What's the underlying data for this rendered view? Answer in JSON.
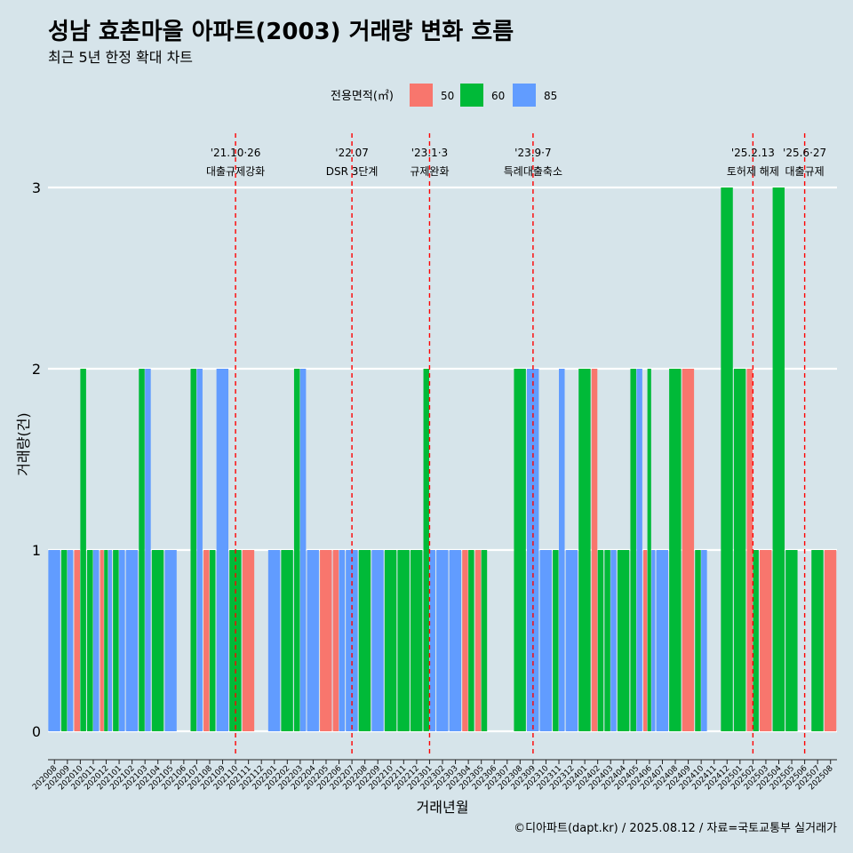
{
  "chart_data": {
    "type": "bar",
    "title": "성남 효촌마을 아파트(2003) 거래량 변화 흐름",
    "subtitle": "최근 5년 한정 확대 차트",
    "xlabel": "거래년월",
    "ylabel": "거래량(건)",
    "ylim": [
      0,
      3
    ],
    "yticks": [
      "0",
      "1",
      "2",
      "3"
    ],
    "legend": {
      "title": "전용면적(㎡)",
      "position": "top",
      "entries": [
        {
          "label": "50",
          "color": "#f8766d"
        },
        {
          "label": "60",
          "color": "#00ba38"
        },
        {
          "label": "85",
          "color": "#619cff"
        }
      ]
    },
    "categories": [
      "202008",
      "202009",
      "202010",
      "202011",
      "202012",
      "202101",
      "202102",
      "202103",
      "202104",
      "202105",
      "202106",
      "202107",
      "202108",
      "202109",
      "202110",
      "202111",
      "202112",
      "202201",
      "202202",
      "202203",
      "202204",
      "202205",
      "202206",
      "202207",
      "202208",
      "202209",
      "202210",
      "202211",
      "202212",
      "202301",
      "202302",
      "202303",
      "202304",
      "202305",
      "202306",
      "202307",
      "202308",
      "202309",
      "202310",
      "202311",
      "202312",
      "202401",
      "202402",
      "202403",
      "202404",
      "202405",
      "202406",
      "202407",
      "202408",
      "202409",
      "202410",
      "202411",
      "202412",
      "202501",
      "202502",
      "202503",
      "202504",
      "202505",
      "202506",
      "202507",
      "202508"
    ],
    "series": [
      {
        "name": "50",
        "color": "#f8766d",
        "values": [
          0,
          0,
          1,
          0,
          1,
          0,
          0,
          0,
          0,
          0,
          0,
          0,
          1,
          0,
          0,
          1,
          0,
          0,
          0,
          0,
          0,
          1,
          1,
          0,
          0,
          0,
          0,
          0,
          0,
          0,
          0,
          0,
          1,
          1,
          0,
          0,
          0,
          0,
          0,
          0,
          0,
          0,
          2,
          0,
          0,
          0,
          1,
          0,
          0,
          2,
          0,
          0,
          0,
          0,
          2,
          1,
          0,
          0,
          0,
          0,
          1
        ]
      },
      {
        "name": "60",
        "color": "#00ba38",
        "values": [
          0,
          1,
          2,
          1,
          1,
          1,
          0,
          2,
          1,
          0,
          0,
          2,
          1,
          0,
          1,
          0,
          0,
          0,
          1,
          2,
          0,
          0,
          0,
          0,
          1,
          0,
          1,
          1,
          1,
          2,
          0,
          0,
          1,
          1,
          0,
          0,
          2,
          0,
          0,
          1,
          0,
          2,
          1,
          1,
          1,
          2,
          2,
          0,
          2,
          0,
          1,
          0,
          3,
          2,
          1,
          0,
          3,
          1,
          0,
          1,
          0
        ]
      },
      {
        "name": "85",
        "color": "#619cff",
        "values": [
          1,
          1,
          0,
          1,
          1,
          1,
          1,
          2,
          0,
          1,
          0,
          2,
          0,
          2,
          0,
          0,
          0,
          1,
          0,
          2,
          1,
          0,
          1,
          1,
          0,
          1,
          0,
          0,
          0,
          1,
          1,
          1,
          0,
          0,
          0,
          0,
          0,
          2,
          1,
          2,
          1,
          0,
          0,
          1,
          0,
          2,
          1,
          1,
          0,
          0,
          1,
          0,
          0,
          0,
          0,
          0,
          0,
          0,
          0,
          0,
          0
        ]
      }
    ],
    "annotations": [
      {
        "x": "202110",
        "date": "'21.10·26",
        "label": "대출규제강화"
      },
      {
        "x": "202207",
        "date": "'22.07",
        "label": "DSR 3단계"
      },
      {
        "x": "202301",
        "date": "'23.1·3",
        "label": "규제완화"
      },
      {
        "x": "202309",
        "date": "'23.9·7",
        "label": "특례대출축소"
      },
      {
        "x": "202502",
        "date": "'25.2.13",
        "label": "토허제 해제"
      },
      {
        "x": "202506",
        "date": "'25.6·27",
        "label": "대출규제"
      }
    ],
    "annotation_color": "#ff0000",
    "caption": "©디아파트(dapt.kr) / 2025.08.12 / 자료=국토교통부 실거래가"
  }
}
